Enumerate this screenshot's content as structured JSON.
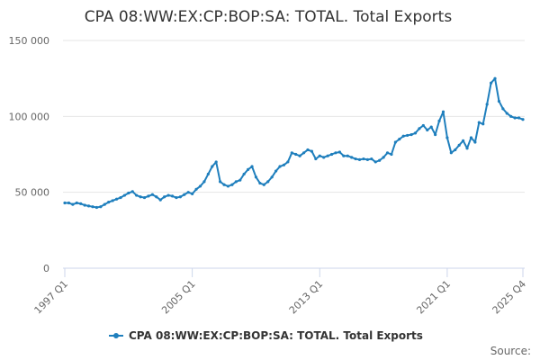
{
  "chart_data": {
    "type": "line",
    "title": "CPA 08:WW:EX:CP:BOP:SA: TOTAL. Total Exports",
    "xlabel": "",
    "ylabel": "",
    "x_tick_labels": [
      "1997 Q1",
      "2005 Q1",
      "2013 Q1",
      "2021 Q1",
      "2025 Q4"
    ],
    "x_tick_indices": [
      0,
      32,
      64,
      96,
      115
    ],
    "y_ticks": [
      0,
      50000,
      100000,
      150000
    ],
    "y_tick_labels": [
      "0",
      "50 000",
      "100 000",
      "150 000"
    ],
    "ylim": [
      0,
      150000
    ],
    "grid": true,
    "legend_position": "bottom-center",
    "source_label": "Source:",
    "series_color": "#1f7fbd",
    "series": [
      {
        "name": "CPA 08:WW:EX:CP:BOP:SA: TOTAL. Total Exports",
        "values": [
          43000,
          43000,
          42000,
          43000,
          42500,
          41500,
          41000,
          40500,
          40000,
          40500,
          42000,
          43500,
          44500,
          45500,
          46500,
          48000,
          49500,
          50500,
          48000,
          47000,
          46500,
          47500,
          48500,
          47000,
          45000,
          47000,
          48000,
          47500,
          46500,
          47000,
          48500,
          50000,
          49000,
          52000,
          54000,
          57000,
          62000,
          67000,
          70000,
          57000,
          55000,
          54000,
          55000,
          57000,
          58000,
          62000,
          65000,
          67000,
          60000,
          56000,
          55000,
          57000,
          60000,
          64000,
          67000,
          68000,
          70000,
          76000,
          75000,
          74000,
          76000,
          78000,
          77000,
          72000,
          74000,
          73000,
          74000,
          75000,
          76000,
          76500,
          74000,
          74000,
          73000,
          72000,
          71500,
          72000,
          71500,
          72000,
          70000,
          71000,
          73000,
          76000,
          75000,
          83000,
          85000,
          87000,
          87500,
          88000,
          89000,
          92000,
          94000,
          91000,
          93000,
          88000,
          97000,
          103000,
          86000,
          76000,
          78000,
          81000,
          84000,
          79000,
          86000,
          83000,
          96000,
          95000,
          108000,
          122000,
          125000,
          110000,
          105000,
          102000,
          100000,
          99000,
          99000,
          98000
        ]
      }
    ]
  }
}
